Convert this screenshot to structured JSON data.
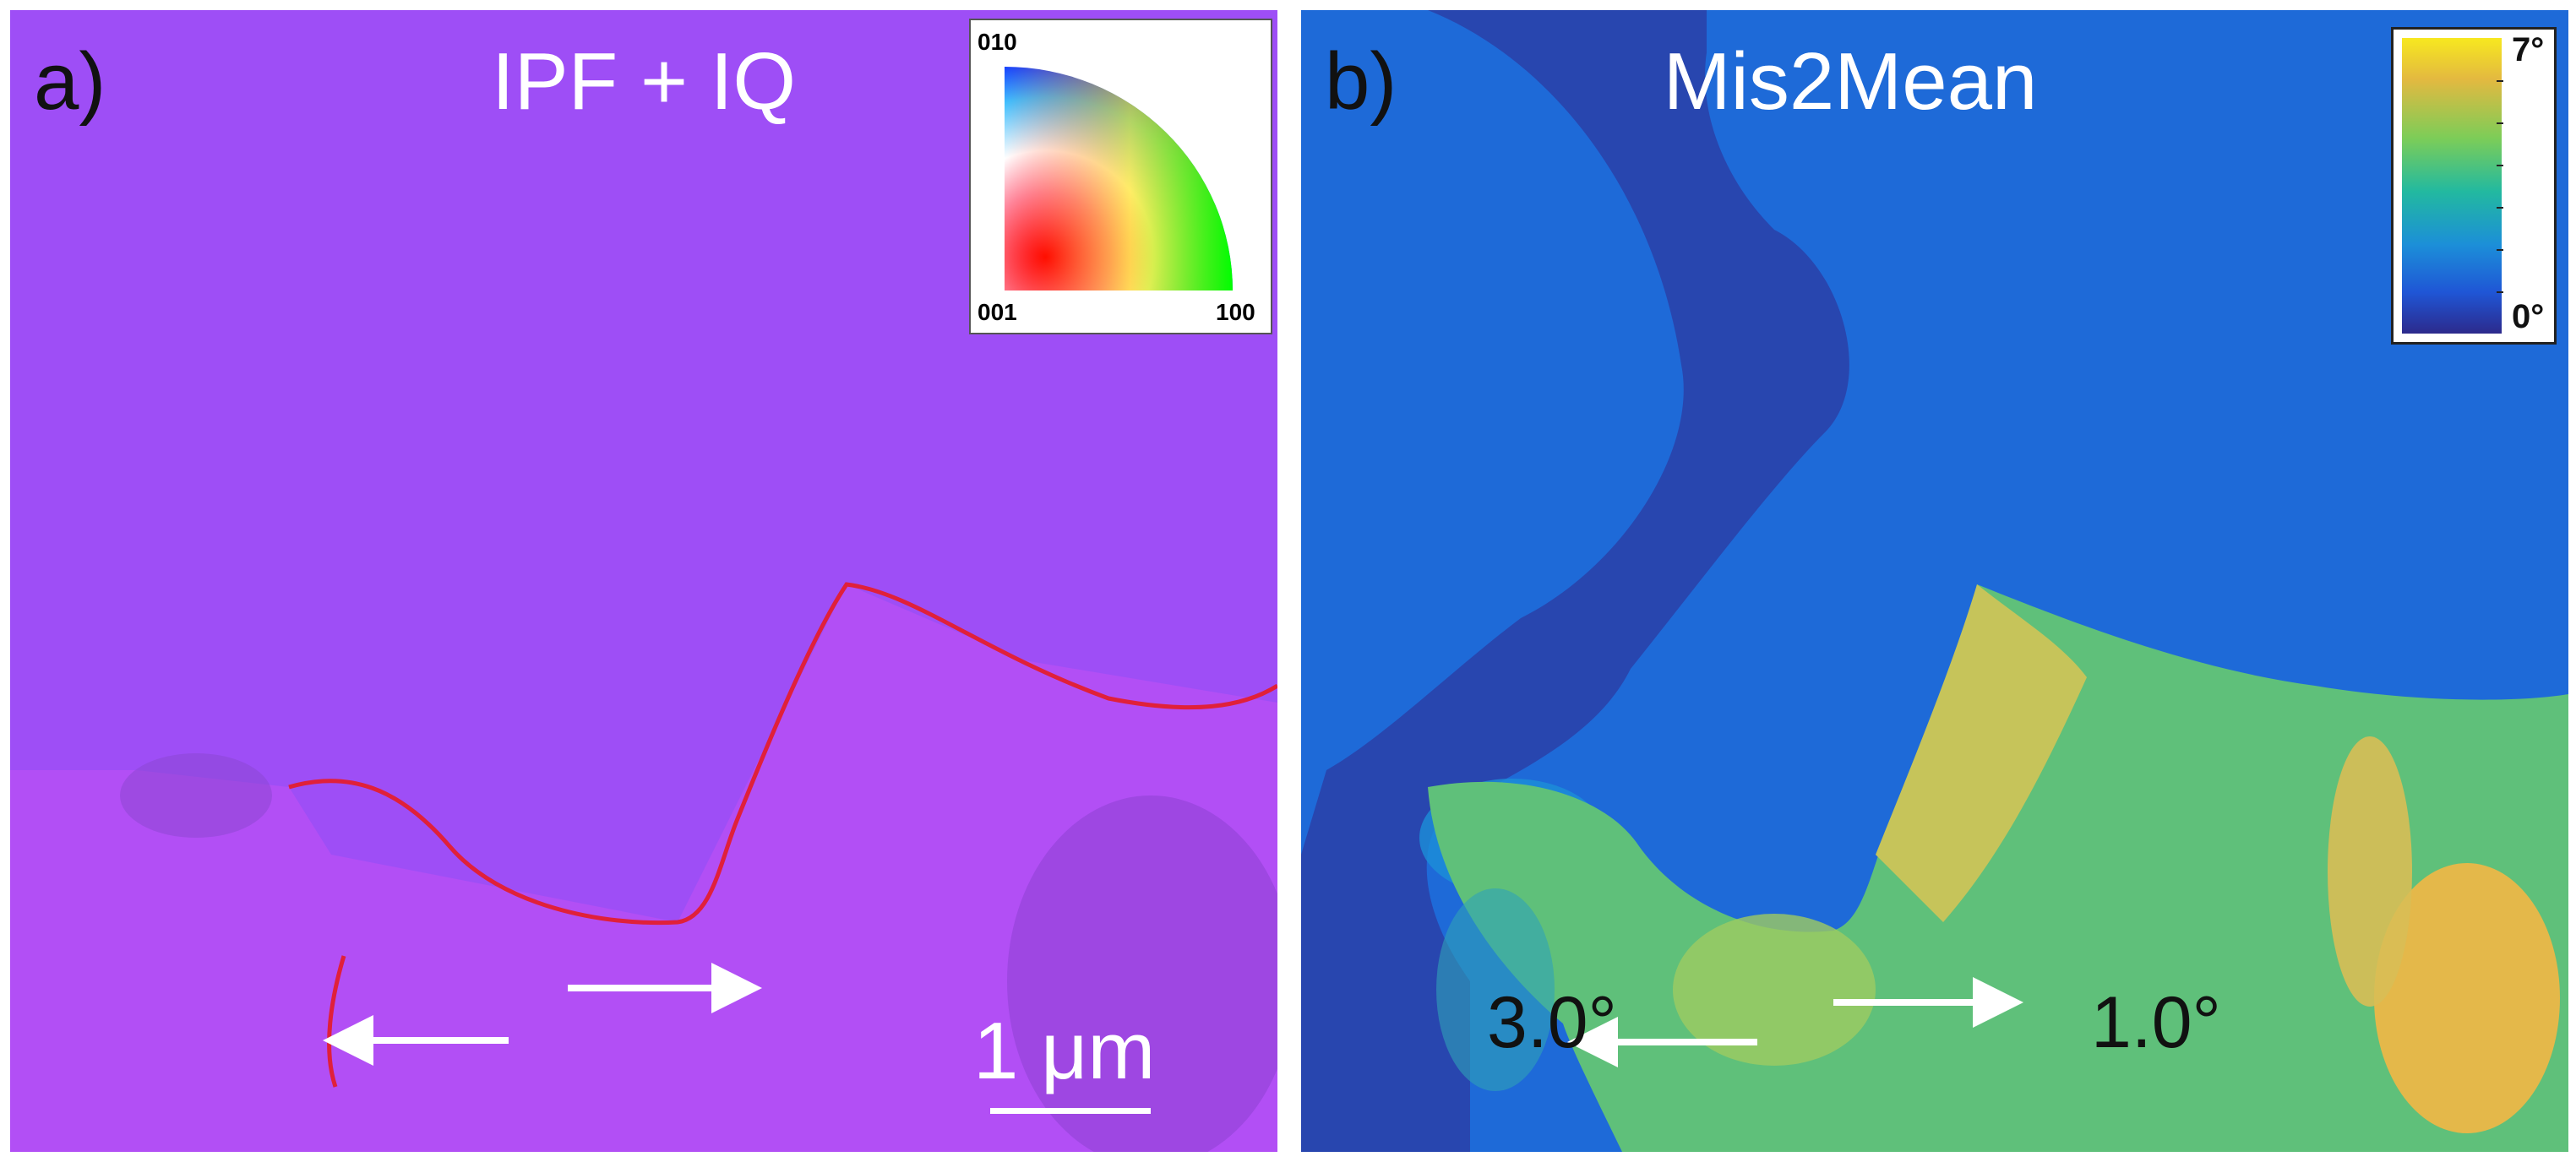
{
  "panel_a": {
    "label": "a)",
    "title": "IPF + IQ",
    "ipf_key": {
      "top_label": "010",
      "bottom_left_label": "001",
      "bottom_right_label": "100"
    },
    "scale_bar_label": "1 μm"
  },
  "panel_b": {
    "label": "b)",
    "title": "Mis2Mean",
    "colorbar": {
      "max_label": "7°",
      "min_label": "0°"
    },
    "left_arrow_label": "3.0°",
    "right_arrow_label": "1.0°"
  },
  "colors": {
    "grain_purple_upper": "#9e4ef6",
    "grain_purple_lower": "#b24ff5",
    "boundary_red": "#e0203a",
    "mis_blue": "#1e6ad8",
    "mis_dark_blue": "#2a3fa8",
    "mis_green": "#5fc07a",
    "mis_yellow": "#e4b84a"
  }
}
